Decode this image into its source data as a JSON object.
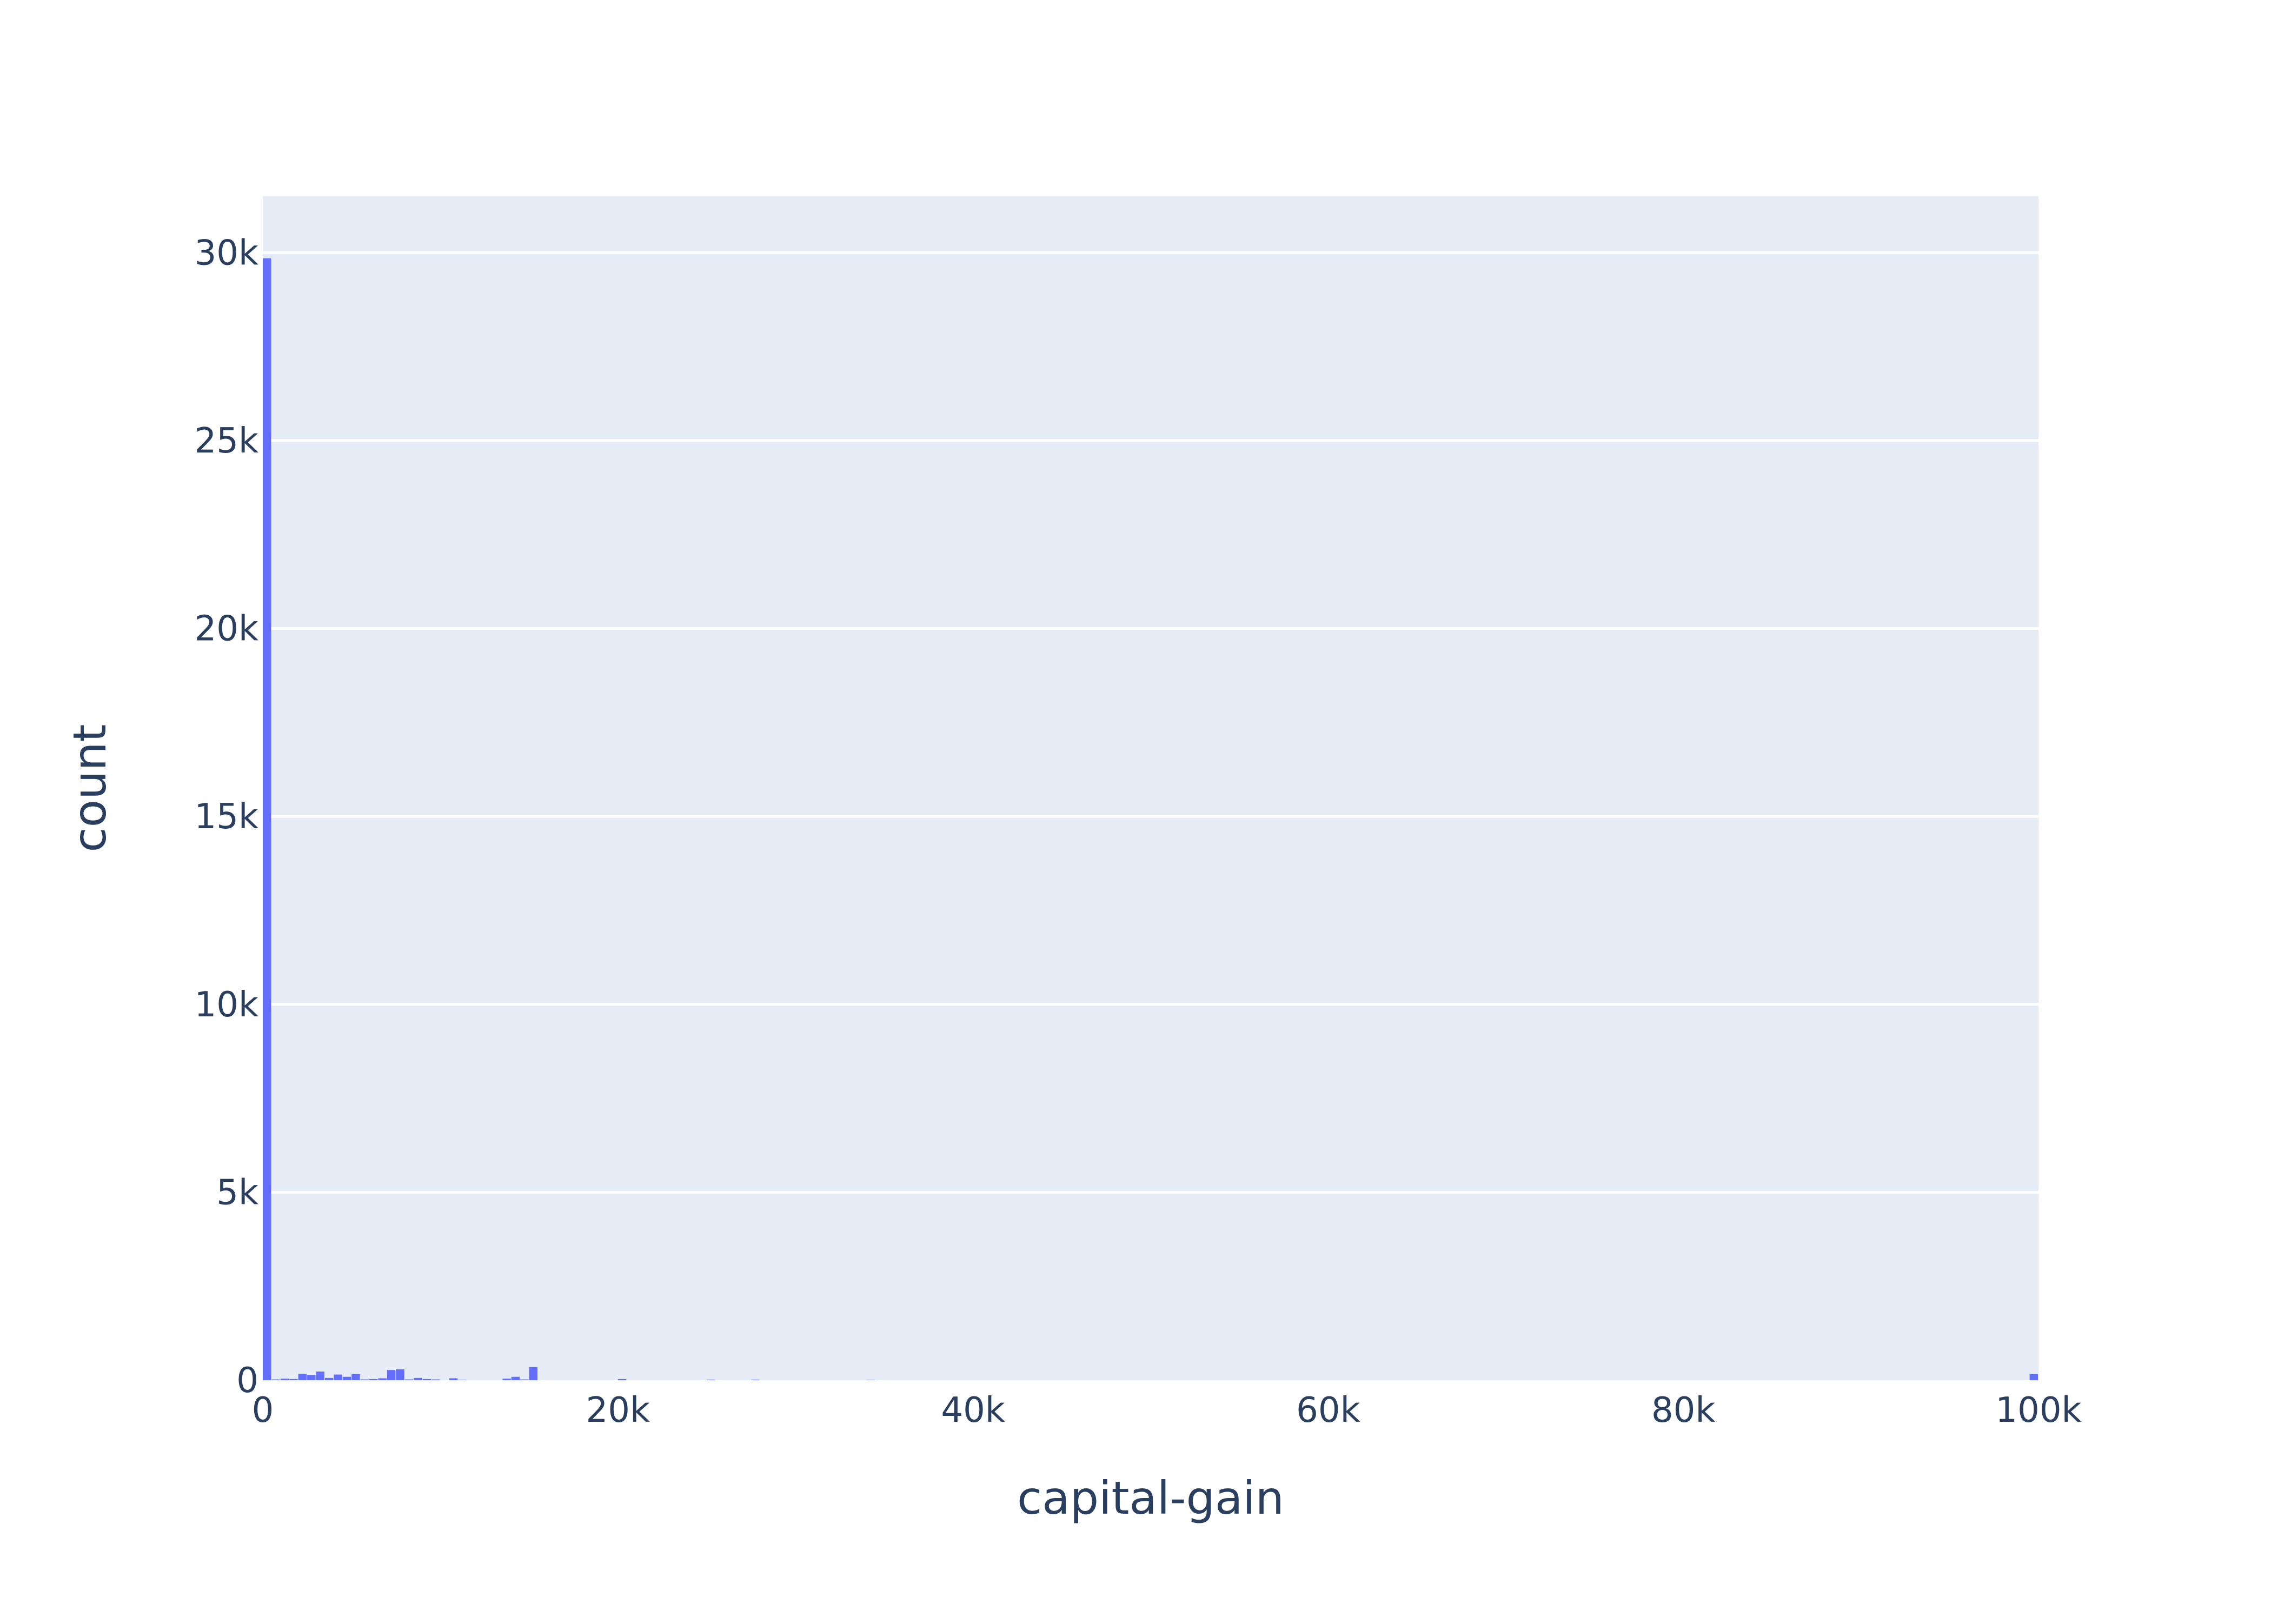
{
  "chart_data": {
    "type": "bar",
    "title": "",
    "xlabel": "capital-gain",
    "ylabel": "count",
    "xlim": [
      0,
      100000
    ],
    "ylim": [
      0,
      31500
    ],
    "x_ticks": [
      {
        "value": 0,
        "label": "0"
      },
      {
        "value": 20000,
        "label": "20k"
      },
      {
        "value": 40000,
        "label": "40k"
      },
      {
        "value": 60000,
        "label": "60k"
      },
      {
        "value": 80000,
        "label": "80k"
      },
      {
        "value": 100000,
        "label": "100k"
      }
    ],
    "y_ticks": [
      {
        "value": 0,
        "label": "0"
      },
      {
        "value": 5000,
        "label": "5k"
      },
      {
        "value": 10000,
        "label": "10k"
      },
      {
        "value": 15000,
        "label": "15k"
      },
      {
        "value": 20000,
        "label": "20k"
      },
      {
        "value": 25000,
        "label": "25k"
      },
      {
        "value": 30000,
        "label": "30k"
      }
    ],
    "grid": true,
    "bin_width": 500,
    "bins": [
      {
        "x0": 0,
        "x1": 500,
        "count": 29849
      },
      {
        "x0": 500,
        "x1": 1000,
        "count": 20
      },
      {
        "x0": 1000,
        "x1": 1500,
        "count": 40
      },
      {
        "x0": 1500,
        "x1": 2000,
        "count": 30
      },
      {
        "x0": 2000,
        "x1": 2500,
        "count": 170
      },
      {
        "x0": 2500,
        "x1": 3000,
        "count": 140
      },
      {
        "x0": 3000,
        "x1": 3500,
        "count": 230
      },
      {
        "x0": 3500,
        "x1": 4000,
        "count": 60
      },
      {
        "x0": 4000,
        "x1": 4500,
        "count": 150
      },
      {
        "x0": 4500,
        "x1": 5000,
        "count": 90
      },
      {
        "x0": 5000,
        "x1": 5500,
        "count": 160
      },
      {
        "x0": 5500,
        "x1": 6000,
        "count": 20
      },
      {
        "x0": 6000,
        "x1": 6500,
        "count": 30
      },
      {
        "x0": 6500,
        "x1": 7000,
        "count": 50
      },
      {
        "x0": 7000,
        "x1": 7500,
        "count": 270
      },
      {
        "x0": 7500,
        "x1": 8000,
        "count": 290
      },
      {
        "x0": 8000,
        "x1": 8500,
        "count": 20
      },
      {
        "x0": 8500,
        "x1": 9000,
        "count": 60
      },
      {
        "x0": 9000,
        "x1": 9500,
        "count": 30
      },
      {
        "x0": 9500,
        "x1": 10000,
        "count": 20
      },
      {
        "x0": 10500,
        "x1": 11000,
        "count": 50
      },
      {
        "x0": 11000,
        "x1": 11500,
        "count": 10
      },
      {
        "x0": 13500,
        "x1": 14000,
        "count": 40
      },
      {
        "x0": 14000,
        "x1": 14500,
        "count": 90
      },
      {
        "x0": 14500,
        "x1": 15000,
        "count": 20
      },
      {
        "x0": 15000,
        "x1": 15500,
        "count": 350
      },
      {
        "x0": 20000,
        "x1": 20500,
        "count": 30
      },
      {
        "x0": 25000,
        "x1": 25500,
        "count": 15
      },
      {
        "x0": 27500,
        "x1": 28000,
        "count": 15
      },
      {
        "x0": 34000,
        "x1": 34500,
        "count": 8
      },
      {
        "x0": 99500,
        "x1": 100000,
        "count": 159
      }
    ],
    "colors": {
      "bar": "#636efa",
      "plot_bg": "#e5ecf6",
      "grid": "#ffffff",
      "text": "#2a3f5f"
    }
  }
}
